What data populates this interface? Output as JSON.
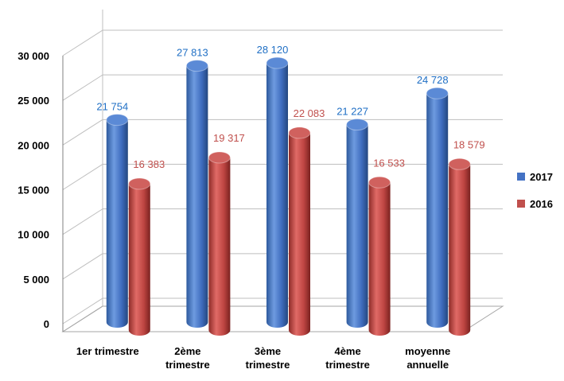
{
  "chart_data": {
    "type": "bar",
    "three_d": true,
    "bar_shape": "cylinder",
    "categories": [
      "1er trimestre",
      "2ème trimestre",
      "3ème trimestre",
      "4ème trimestre",
      "moyenne annuelle"
    ],
    "category_lines": [
      [
        "1er trimestre"
      ],
      [
        "2ème",
        "trimestre"
      ],
      [
        "3ème",
        "trimestre"
      ],
      [
        "4ème",
        "trimestre"
      ],
      [
        "moyenne",
        "annuelle"
      ]
    ],
    "series": [
      {
        "name": "2017",
        "values": [
          21754,
          27813,
          28120,
          21227,
          24728
        ],
        "labels": [
          "21 754",
          "27 813",
          "28 120",
          "21 227",
          "24 728"
        ],
        "color": "#4472C4",
        "label_color": "#1F6FC5"
      },
      {
        "name": "2016",
        "values": [
          16383,
          19317,
          22083,
          16533,
          18579
        ],
        "labels": [
          "16 383",
          "19 317",
          "22 083",
          "16 533",
          "18 579"
        ],
        "color": "#C0504D",
        "label_color": "#C0504D"
      }
    ],
    "y_ticks": [
      0,
      5000,
      10000,
      15000,
      20000,
      25000,
      30000
    ],
    "y_tick_labels": [
      "0",
      "5 000",
      "10 000",
      "15 000",
      "20 000",
      "25 000",
      "30 000"
    ],
    "ylim": [
      0,
      30000
    ],
    "grid": true,
    "legend_position": "right"
  }
}
